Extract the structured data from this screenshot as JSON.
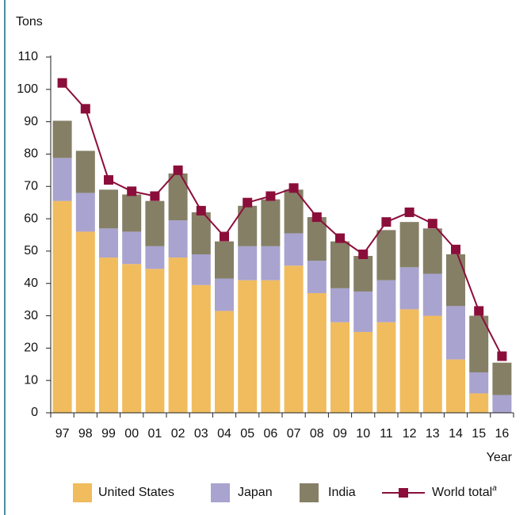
{
  "chart_data": {
    "type": "bar",
    "stacked": true,
    "y_label": "Tons",
    "x_label": "Year",
    "categories": [
      "97",
      "98",
      "99",
      "00",
      "01",
      "02",
      "03",
      "04",
      "05",
      "06",
      "07",
      "08",
      "09",
      "10",
      "11",
      "12",
      "13",
      "14",
      "15",
      "16"
    ],
    "series": [
      {
        "name": "United States",
        "type": "bar",
        "color": "#f0bc5e",
        "values": [
          65.5,
          56,
          48,
          46,
          44.5,
          48,
          39.5,
          31.5,
          41,
          41,
          45.5,
          37,
          28,
          25,
          28,
          32,
          30,
          16.5,
          6,
          0
        ]
      },
      {
        "name": "Japan",
        "type": "bar",
        "color": "#a9a3cf",
        "values": [
          13.3,
          12,
          9,
          10,
          7,
          11.5,
          9.5,
          10,
          10.5,
          10.5,
          10,
          10,
          10.5,
          12.5,
          13,
          13,
          13,
          16.5,
          6.5,
          5.5
        ]
      },
      {
        "name": "India",
        "type": "bar",
        "color": "#857f66",
        "values": [
          11.5,
          13,
          12,
          11.5,
          14,
          14.5,
          13,
          11.5,
          12.5,
          14.5,
          13.5,
          13.5,
          14.5,
          11,
          15.5,
          14,
          14,
          16,
          17.5,
          10
        ]
      },
      {
        "name": "World total",
        "type": "line",
        "color": "#8b0e3a",
        "footnote": "a",
        "values": [
          102,
          94,
          72,
          68.5,
          67,
          75,
          62.5,
          54.5,
          65,
          67,
          69.5,
          60.5,
          54,
          49,
          59,
          62,
          58.5,
          50.5,
          31.5,
          17.5
        ]
      }
    ],
    "ylim": [
      0,
      110
    ],
    "yticks": [
      0,
      10,
      20,
      30,
      40,
      50,
      60,
      70,
      80,
      90,
      100,
      110
    ],
    "grid": false,
    "legend": "bottom"
  }
}
